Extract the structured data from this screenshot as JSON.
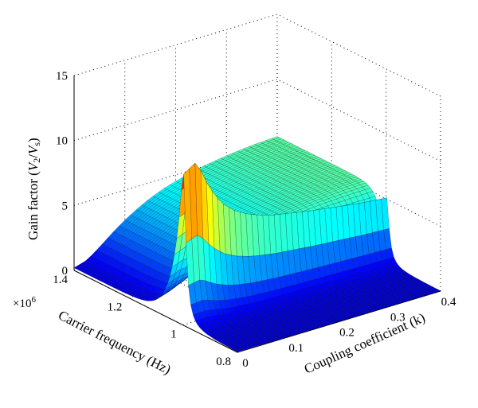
{
  "chart_data": {
    "type": "surface",
    "title": "",
    "xlabel": "Coupling coefficient (k)",
    "ylabel": "Carrier frequency (Hz)",
    "zlabel": "Gain factor (V2/Vs)",
    "zlabel_parts": {
      "pre": "Gain factor (",
      "v": "V",
      "sub1": "2",
      "slash": "/",
      "v2": "V",
      "sub2": "s",
      "post": ")"
    },
    "y_multiplier": "×10",
    "y_multiplier_exp": "6",
    "xlim": [
      0,
      0.4
    ],
    "ylim": [
      800000,
      1400000
    ],
    "zlim": [
      0,
      15
    ],
    "x_ticks": [
      "0",
      "0.1",
      "0.2",
      "0.3",
      "0.4"
    ],
    "y_ticks": [
      "0.8",
      "1",
      "1.2",
      "1.4"
    ],
    "z_ticks": [
      "0",
      "5",
      "10",
      "15"
    ],
    "grid": true,
    "colormap": "jet",
    "ridge": {
      "k": [
        0.0,
        0.025,
        0.05,
        0.075,
        0.1,
        0.125,
        0.15,
        0.175,
        0.2,
        0.25,
        0.3,
        0.35,
        0.4
      ],
      "peak_gain": [
        12.3,
        13.0,
        10.6,
        9.0,
        8.1,
        7.5,
        7.1,
        6.8,
        6.6,
        6.2,
        5.9,
        5.6,
        5.4
      ],
      "resonant_frequency": [
        1000000,
        1000000,
        1000000,
        1000000,
        1000000,
        1000000,
        1000000,
        1000000,
        1000000,
        1000000,
        1000000,
        1000000,
        1000000
      ],
      "high_freq_gain": [
        0.2,
        0.5,
        1.2,
        2.0,
        2.7,
        3.3,
        3.8,
        4.2,
        4.5,
        5.0,
        5.3,
        5.5,
        5.6
      ]
    }
  }
}
